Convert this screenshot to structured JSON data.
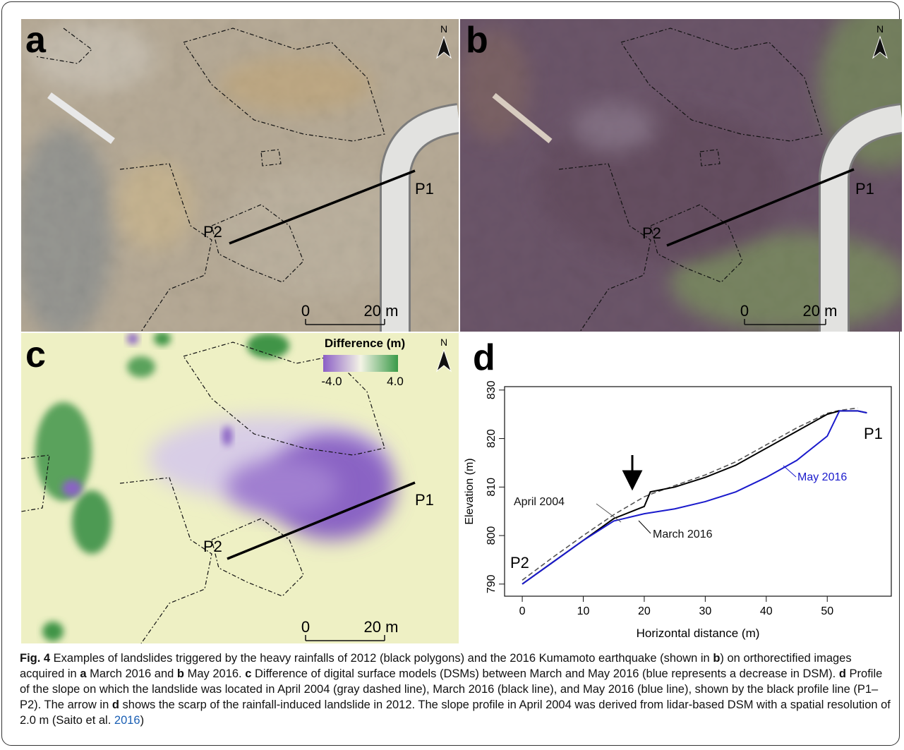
{
  "panels": [
    {
      "label": "a",
      "north": "N",
      "scale_start": "0",
      "scale_end": "20 m",
      "profile_start": "P2",
      "profile_end": "P1"
    },
    {
      "label": "b",
      "north": "N",
      "scale_start": "0",
      "scale_end": "20 m",
      "profile_start": "P2",
      "profile_end": "P1"
    },
    {
      "label": "c",
      "north": "N",
      "scale_start": "0",
      "scale_end": "20 m",
      "profile_start": "P2",
      "profile_end": "P1",
      "legend_title": "Difference (m)",
      "legend_min": "-4.0",
      "legend_max": "4.0"
    },
    {
      "label": "d"
    }
  ],
  "chart_data": {
    "type": "line",
    "x_label": "Horizontal distance (m)",
    "y_label": "Elevation (m)",
    "x": [
      0,
      5,
      10,
      15,
      20,
      21,
      25,
      30,
      35,
      40,
      45,
      50,
      52,
      55,
      56.5
    ],
    "series": [
      {
        "name": "April 2004",
        "color": "#555555",
        "dashed": true,
        "values": [
          790.8,
          795.5,
          800,
          804.3,
          808,
          808.5,
          810.3,
          812.5,
          815.2,
          818.7,
          822.2,
          825.2,
          825.8,
          826.3,
          null
        ]
      },
      {
        "name": "March 2016",
        "color": "#000000",
        "dashed": false,
        "values": [
          790,
          794.5,
          799,
          803.5,
          806,
          809,
          810,
          812,
          814.5,
          818,
          821.5,
          825,
          825.7,
          825.7,
          825.3
        ]
      },
      {
        "name": "May 2016",
        "color": "#1a1acc",
        "dashed": false,
        "values": [
          790,
          794.5,
          799,
          803,
          804.5,
          804.7,
          805.5,
          807,
          809,
          812,
          815.5,
          820.5,
          825.7,
          825.7,
          825.3
        ]
      }
    ],
    "profile_labels": [
      "P2",
      "P1"
    ],
    "xlim": [
      -2.9,
      60.5
    ],
    "ylim": [
      787.5,
      830.7
    ],
    "xticks": [
      0,
      10,
      20,
      30,
      40,
      50
    ],
    "yticks": [
      790,
      800,
      810,
      820,
      830
    ]
  },
  "caption": {
    "segments": [
      "Fig. 4",
      " Examples of landslides triggered by the heavy rainfalls of 2012 (black polygons) and the 2016 Kumamoto earthquake (shown in ",
      "b",
      ") on orthorectified images acquired in ",
      "a",
      " March 2016 and ",
      "b",
      " May 2016. ",
      "c",
      " Difference of digital surface models (DSMs) between March and May 2016 (blue represents a decrease in DSM). ",
      "d",
      " Profile of the slope on which the landslide was located in April 2004 (gray dashed line), March 2016 (black line), and May 2016 (blue line), shown by the black profile line (P1–P2). The arrow in ",
      "d",
      " shows the scarp of the rainfall-induced landslide in 2012. The slope profile in April 2004 was derived from lidar-based DSM with a spatial resolution of 2.0 m (Saito et al. ",
      "2016",
      ")"
    ]
  }
}
